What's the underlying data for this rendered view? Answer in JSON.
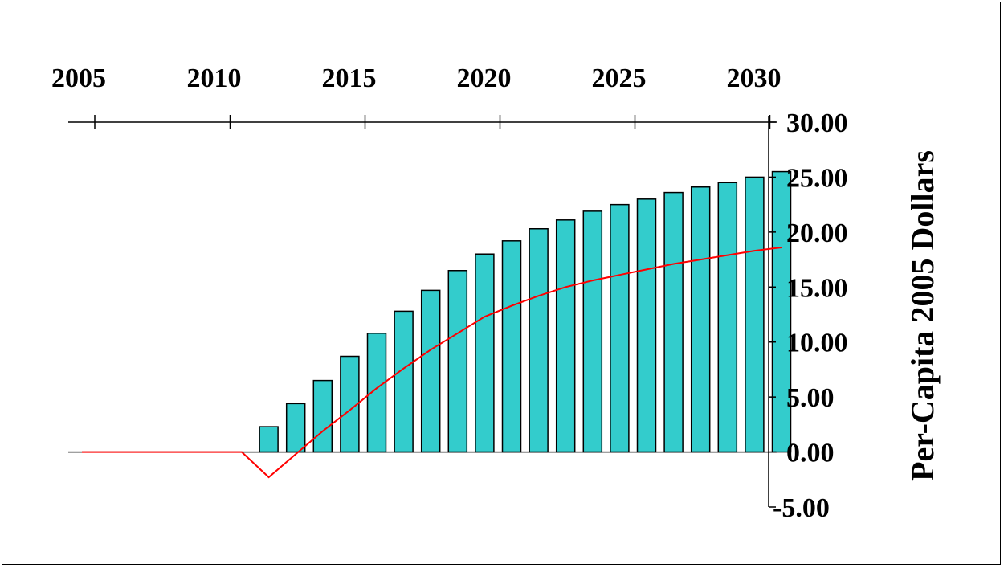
{
  "chart_data": {
    "type": "bar",
    "title": "",
    "xlabel": "",
    "ylabel": "Per-Capita 2005 Dollars",
    "x_axis_position": "top",
    "y_axis_position": "right",
    "xlim": [
      2004,
      2030
    ],
    "ylim": [
      -5,
      30
    ],
    "x_ticks": [
      "2005",
      "2010",
      "2015",
      "2020",
      "2025",
      "2030"
    ],
    "y_ticks": [
      "30.00",
      "25.00",
      "20.00",
      "15.00",
      "10.00",
      "5.00",
      "0.00",
      "-5.00"
    ],
    "grid": false,
    "x": [
      2005,
      2006,
      2007,
      2008,
      2009,
      2010,
      2011,
      2012,
      2013,
      2014,
      2015,
      2016,
      2017,
      2018,
      2019,
      2020,
      2021,
      2022,
      2023,
      2024,
      2025,
      2026,
      2027,
      2028,
      2029,
      2030
    ],
    "series": [
      {
        "type": "bar",
        "values": [
          0,
          0,
          0,
          0,
          0,
          0,
          2.3,
          4.4,
          6.5,
          8.7,
          10.8,
          12.8,
          14.7,
          16.5,
          18.0,
          19.2,
          20.3,
          21.1,
          21.9,
          22.5,
          23.0,
          23.6,
          24.1,
          24.5,
          25.0,
          25.5
        ],
        "color": "#33cccc"
      },
      {
        "type": "line",
        "values": [
          0,
          0,
          0,
          0,
          0,
          0,
          -2.3,
          -0.2,
          1.9,
          3.8,
          5.8,
          7.6,
          9.3,
          10.8,
          12.3,
          13.3,
          14.2,
          15.0,
          15.6,
          16.1,
          16.6,
          17.1,
          17.5,
          17.9,
          18.3,
          18.6
        ],
        "color": "#ff0000"
      }
    ]
  }
}
